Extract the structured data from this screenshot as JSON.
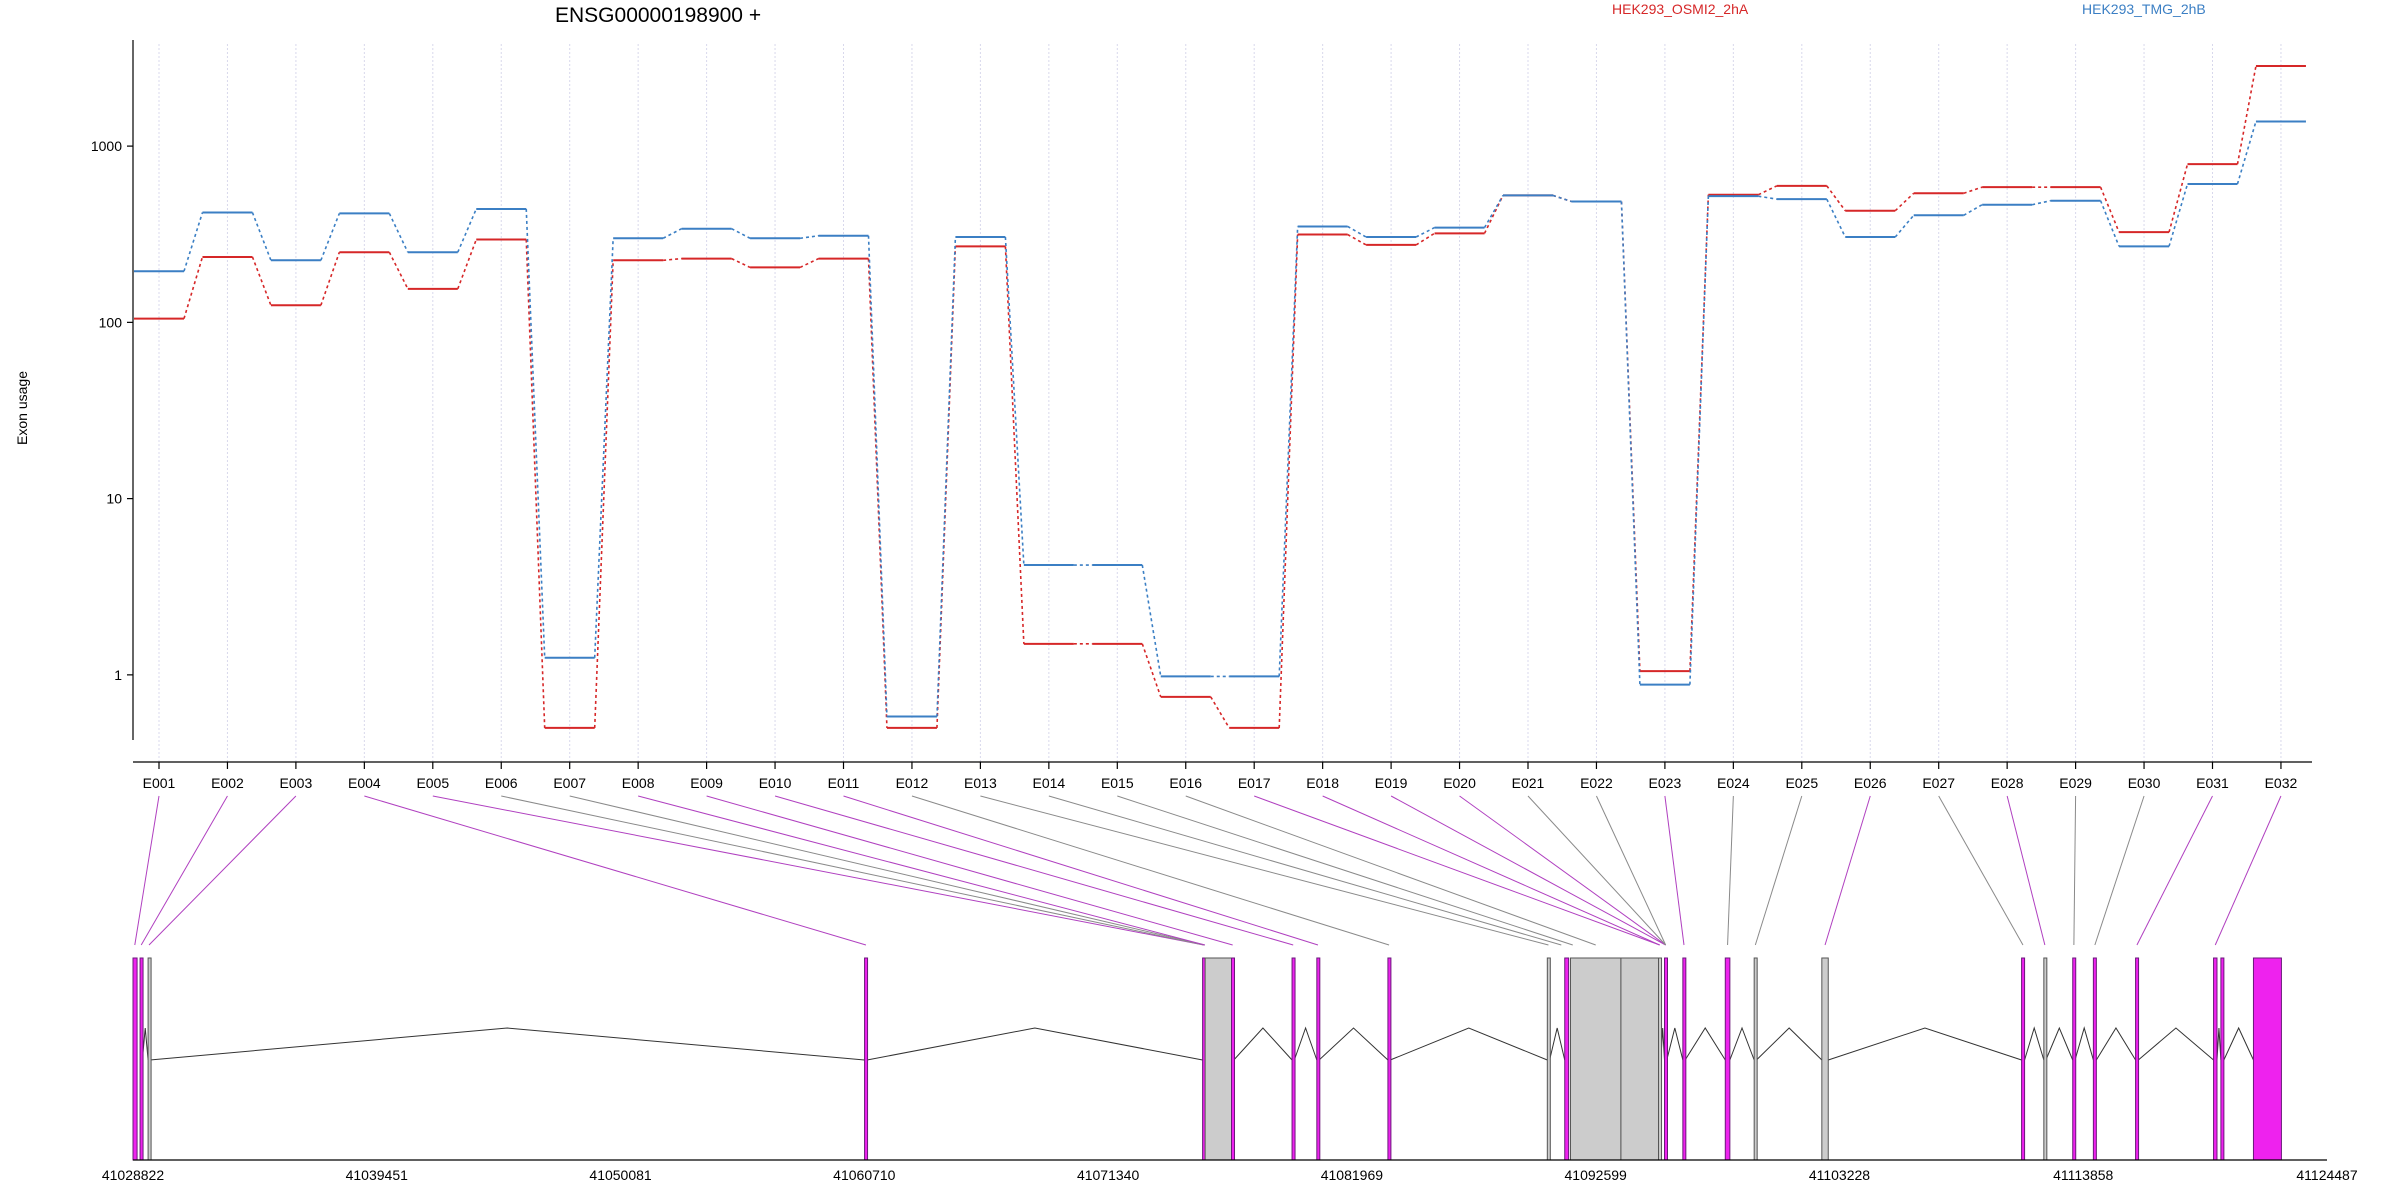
{
  "chart_data": {
    "type": "line",
    "title": "ENSG00000198900 +",
    "ylabel": "Exon usage",
    "yscale": "log",
    "ylim": [
      0.4,
      4000
    ],
    "yticks": [
      1,
      10,
      100,
      1000
    ],
    "ytick_labels": [
      "1",
      "10",
      "100",
      "1000"
    ],
    "legend_placement": "top",
    "grid": "vertical dotted lines at each exon",
    "categories": [
      "E001",
      "E002",
      "E003",
      "E004",
      "E005",
      "E006",
      "E007",
      "E008",
      "E009",
      "E010",
      "E011",
      "E012",
      "E013",
      "E014",
      "E015",
      "E016",
      "E017",
      "E018",
      "E019",
      "E020",
      "E021",
      "E022",
      "E023",
      "E024",
      "E025",
      "E026",
      "E027",
      "E028",
      "E029",
      "E030",
      "E031",
      "E032"
    ],
    "series": [
      {
        "name": "HEK293_OSMI2_2hA",
        "color": "#d62728",
        "values": [
          105,
          235,
          125,
          250,
          155,
          295,
          0.5,
          225,
          230,
          205,
          230,
          0.5,
          270,
          1.5,
          1.5,
          0.75,
          0.5,
          315,
          275,
          320,
          525,
          485,
          1.05,
          530,
          595,
          430,
          540,
          585,
          585,
          325,
          790,
          2850
        ]
      },
      {
        "name": "HEK293_TMG_2hB",
        "color": "#3b7fc4",
        "values": [
          195,
          420,
          225,
          415,
          250,
          440,
          1.25,
          300,
          340,
          300,
          310,
          0.58,
          305,
          4.2,
          4.2,
          0.98,
          0.98,
          350,
          305,
          345,
          525,
          485,
          0.88,
          520,
          500,
          305,
          405,
          465,
          490,
          270,
          610,
          1380
        ]
      }
    ],
    "gene_model": {
      "coordinate_labels": [
        "41028822",
        "41039451",
        "41050081",
        "41060710",
        "41071340",
        "41081969",
        "41092599",
        "41103228",
        "41113858",
        "41124487"
      ],
      "exon_color_tested": "#ee22ee",
      "exon_color_untested": "#cccccc",
      "exon_outline_color": "#6a1a7a",
      "exons": [
        {
          "start": 41028822,
          "end": 41029000,
          "tested": true
        },
        {
          "start": 41029130,
          "end": 41029230,
          "tested": true
        },
        {
          "start": 41029480,
          "end": 41029560,
          "tested": false
        },
        {
          "start": 41060720,
          "end": 41060830,
          "tested": true
        },
        {
          "start": 41075460,
          "end": 41075560,
          "tested": true
        },
        {
          "start": 41075570,
          "end": 41076720,
          "tested": false
        },
        {
          "start": 41076720,
          "end": 41076820,
          "tested": true
        },
        {
          "start": 41079360,
          "end": 41079460,
          "tested": true
        },
        {
          "start": 41080440,
          "end": 41080540,
          "tested": true
        },
        {
          "start": 41083540,
          "end": 41083640,
          "tested": true
        },
        {
          "start": 41090490,
          "end": 41090590,
          "tested": false
        },
        {
          "start": 41091250,
          "end": 41091420,
          "tested": true
        },
        {
          "start": 41091500,
          "end": 41093700,
          "tested": false
        },
        {
          "start": 41093700,
          "end": 41095340,
          "tested": false
        },
        {
          "start": 41095340,
          "end": 41095440,
          "tested": false
        },
        {
          "start": 41095600,
          "end": 41095700,
          "tested": true
        },
        {
          "start": 41096400,
          "end": 41096500,
          "tested": true
        },
        {
          "start": 41098250,
          "end": 41098450,
          "tested": true
        },
        {
          "start": 41099510,
          "end": 41099610,
          "tested": false
        },
        {
          "start": 41102460,
          "end": 41102740,
          "tested": false
        },
        {
          "start": 41111170,
          "end": 41111300,
          "tested": true
        },
        {
          "start": 41112140,
          "end": 41112230,
          "tested": false
        },
        {
          "start": 41113400,
          "end": 41113500,
          "tested": true
        },
        {
          "start": 41114300,
          "end": 41114430,
          "tested": true
        },
        {
          "start": 41116140,
          "end": 41116260,
          "tested": true
        },
        {
          "start": 41119540,
          "end": 41119690,
          "tested": true
        },
        {
          "start": 41119860,
          "end": 41119990,
          "tested": true
        },
        {
          "start": 41121280,
          "end": 41122500,
          "tested": true
        }
      ],
      "anchors": [
        41028900,
        41029180,
        41029520,
        41060780,
        41075510,
        41075510,
        41075560,
        41075560,
        41076770,
        41079410,
        41080490,
        41083590,
        41090540,
        41091100,
        41091600,
        41092600,
        41095390,
        41095390,
        41095650,
        41095650,
        41095650,
        41095650,
        41096450,
        41098350,
        41099560,
        41102600,
        41111230,
        41112185,
        41113450,
        41114365,
        41116200,
        41119615
      ]
    }
  }
}
